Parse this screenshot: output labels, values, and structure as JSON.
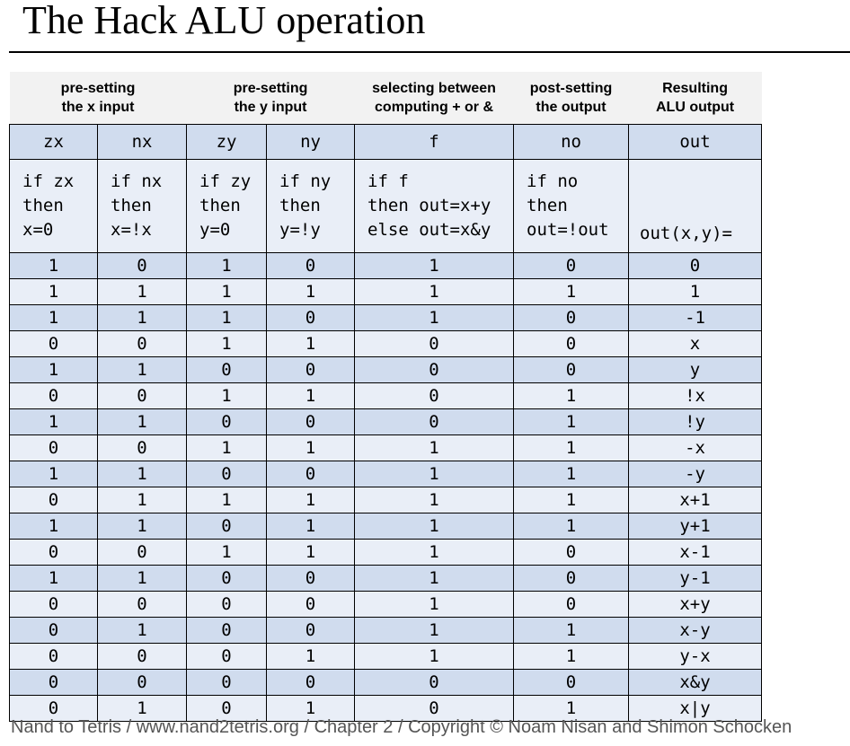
{
  "title": "The Hack ALU operation",
  "header_groups": {
    "x_input": [
      "pre-setting",
      "the x input"
    ],
    "y_input": [
      "pre-setting",
      "the y input"
    ],
    "function": [
      "selecting between",
      "computing + or &"
    ],
    "post": [
      "post-setting",
      "the output"
    ],
    "result": [
      "Resulting",
      "ALU output"
    ]
  },
  "columns": [
    "zx",
    "nx",
    "zy",
    "ny",
    "f",
    "no",
    "out"
  ],
  "descriptions": {
    "zx": [
      "if zx",
      "then",
      "x=0"
    ],
    "nx": [
      "if nx",
      "then",
      "x=!x"
    ],
    "zy": [
      "if zy",
      "then",
      "y=0"
    ],
    "ny": [
      "if ny",
      "then",
      "y=!y"
    ],
    "f": [
      "if f",
      "then out=x+y",
      "else out=x&y"
    ],
    "no": [
      "if no",
      "then",
      "out=!out"
    ],
    "out": "out(x,y)="
  },
  "rows": [
    [
      "1",
      "0",
      "1",
      "0",
      "1",
      "0",
      "0"
    ],
    [
      "1",
      "1",
      "1",
      "1",
      "1",
      "1",
      "1"
    ],
    [
      "1",
      "1",
      "1",
      "0",
      "1",
      "0",
      "-1"
    ],
    [
      "0",
      "0",
      "1",
      "1",
      "0",
      "0",
      "x"
    ],
    [
      "1",
      "1",
      "0",
      "0",
      "0",
      "0",
      "y"
    ],
    [
      "0",
      "0",
      "1",
      "1",
      "0",
      "1",
      "!x"
    ],
    [
      "1",
      "1",
      "0",
      "0",
      "0",
      "1",
      "!y"
    ],
    [
      "0",
      "0",
      "1",
      "1",
      "1",
      "1",
      "-x"
    ],
    [
      "1",
      "1",
      "0",
      "0",
      "1",
      "1",
      "-y"
    ],
    [
      "0",
      "1",
      "1",
      "1",
      "1",
      "1",
      "x+1"
    ],
    [
      "1",
      "1",
      "0",
      "1",
      "1",
      "1",
      "y+1"
    ],
    [
      "0",
      "0",
      "1",
      "1",
      "1",
      "0",
      "x-1"
    ],
    [
      "1",
      "1",
      "0",
      "0",
      "1",
      "0",
      "y-1"
    ],
    [
      "0",
      "0",
      "0",
      "0",
      "1",
      "0",
      "x+y"
    ],
    [
      "0",
      "1",
      "0",
      "0",
      "1",
      "1",
      "x-y"
    ],
    [
      "0",
      "0",
      "0",
      "1",
      "1",
      "1",
      "y-x"
    ],
    [
      "0",
      "0",
      "0",
      "0",
      "0",
      "0",
      "x&y"
    ],
    [
      "0",
      "1",
      "0",
      "1",
      "0",
      "1",
      "x|y"
    ]
  ],
  "footer": "Nand to Tetris / www.nand2tetris.org / Chapter 2 / Copyright © Noam Nisan and Shimon Schocken"
}
